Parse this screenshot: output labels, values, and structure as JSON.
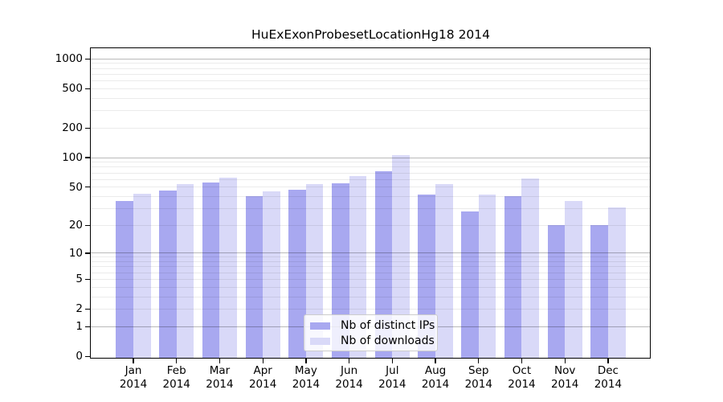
{
  "chart_data": {
    "type": "bar",
    "title": "HuExExonProbesetLocationHg18 2014",
    "categories": [
      "Jan",
      "Feb",
      "Mar",
      "Apr",
      "May",
      "Jun",
      "Jul",
      "Aug",
      "Sep",
      "Oct",
      "Nov",
      "Dec"
    ],
    "x_year_label": "2014",
    "series": [
      {
        "name": "Nb of distinct IPs",
        "color": "#a8a8f0",
        "values": [
          36,
          46,
          56,
          40,
          47,
          55,
          73,
          42,
          28,
          40,
          20,
          20
        ]
      },
      {
        "name": "Nb of downloads",
        "color": "#d9d9f8",
        "values": [
          43,
          54,
          63,
          45,
          54,
          65,
          107,
          54,
          42,
          61,
          36,
          31
        ]
      }
    ],
    "yscale": "log1p",
    "y_ticks": [
      0,
      1,
      2,
      5,
      10,
      20,
      50,
      100,
      200,
      500,
      1000
    ],
    "ylim": [
      0,
      1280
    ],
    "grid": "horizontal",
    "major_grid_values": [
      1,
      10,
      100,
      1000
    ],
    "legend_position": "lower center",
    "axis_color": "#000000",
    "xlabel": "",
    "ylabel": ""
  }
}
